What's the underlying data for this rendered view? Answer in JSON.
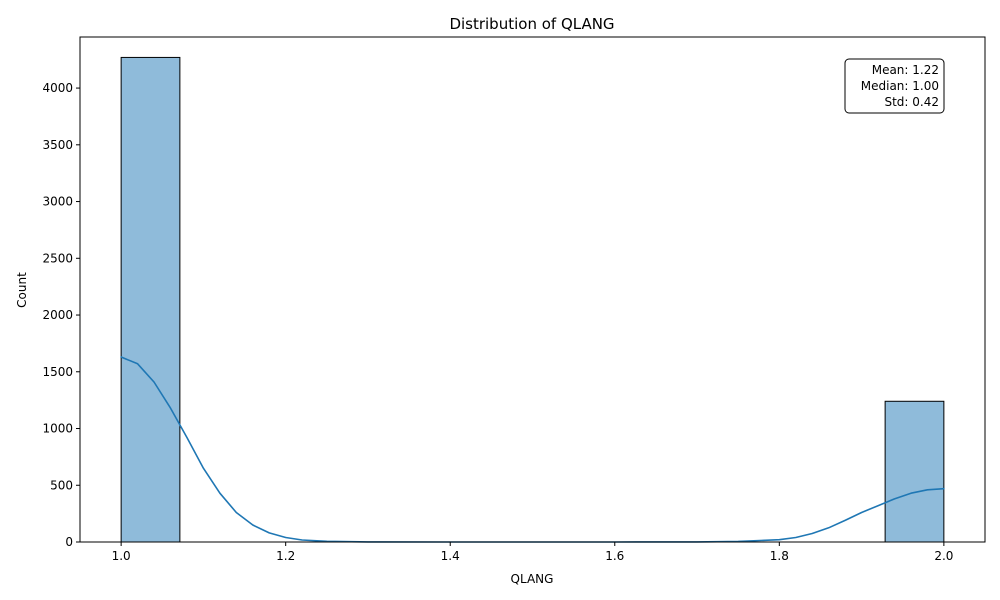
{
  "chart_data": {
    "type": "bar",
    "title": "Distribution of QLANG",
    "xlabel": "QLANG",
    "ylabel": "Count",
    "xlim": [
      0.95,
      2.05
    ],
    "ylim": [
      0,
      4450
    ],
    "xticks": [
      1.0,
      1.2,
      1.4,
      1.6,
      1.8,
      2.0
    ],
    "xtick_labels": [
      "1.0",
      "1.2",
      "1.4",
      "1.6",
      "1.8",
      "2.0"
    ],
    "yticks": [
      0,
      500,
      1000,
      1500,
      2000,
      2500,
      3000,
      3500,
      4000
    ],
    "ytick_labels": [
      "0",
      "500",
      "1000",
      "1500",
      "2000",
      "2500",
      "3000",
      "3500",
      "4000"
    ],
    "bins": [
      {
        "x0": 1.0,
        "x1": 1.0714,
        "count": 4270
      },
      {
        "x0": 1.9286,
        "x1": 2.0,
        "count": 1240
      }
    ],
    "kde": {
      "x": [
        1.0,
        1.02,
        1.04,
        1.06,
        1.08,
        1.1,
        1.12,
        1.14,
        1.16,
        1.18,
        1.2,
        1.22,
        1.25,
        1.3,
        1.4,
        1.6,
        1.7,
        1.75,
        1.8,
        1.82,
        1.84,
        1.86,
        1.88,
        1.9,
        1.92,
        1.94,
        1.96,
        1.98,
        2.0
      ],
      "y": [
        1630,
        1570,
        1410,
        1180,
        920,
        650,
        430,
        260,
        150,
        80,
        40,
        18,
        6,
        1,
        0,
        0,
        1,
        5,
        20,
        40,
        75,
        125,
        190,
        260,
        320,
        380,
        430,
        460,
        470
      ]
    },
    "bar_color": "#8fbbda",
    "bar_edge_color": "#000000",
    "line_color": "#1f77b4",
    "stats": {
      "mean_label": "Mean: 1.22",
      "median_label": "Median: 1.00",
      "std_label": "Std: 0.42"
    }
  }
}
